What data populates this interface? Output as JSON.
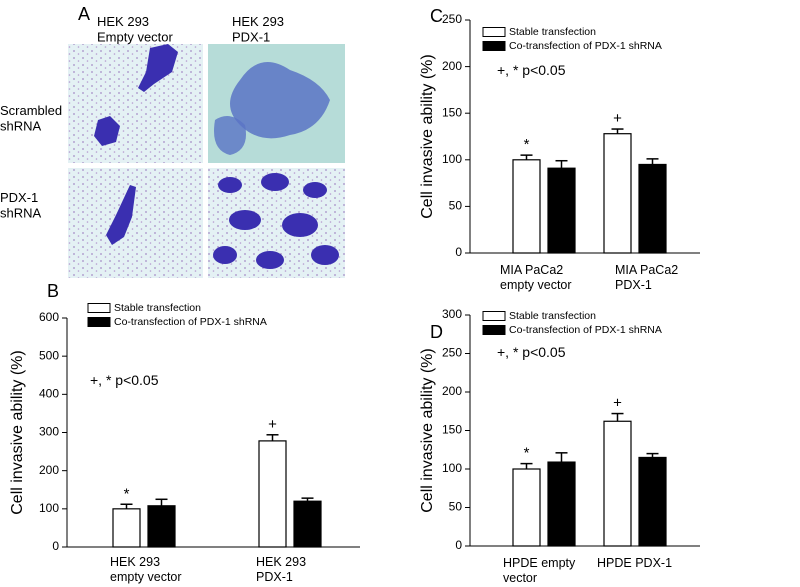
{
  "panel_a": {
    "label": "A",
    "columns": [
      "HEK 293\nEmpty vector",
      "HEK 293\nPDX-1"
    ],
    "rows": [
      "Scrambled\nshRNA",
      "PDX-1\nshRNA"
    ]
  },
  "chart_data": [
    {
      "type": "bar",
      "label": "B",
      "ylabel": "Cell invasive ability (%)",
      "note": "+, * p<0.05",
      "categories": [
        "HEK 293\nempty vector",
        "HEK 293\nPDX-1"
      ],
      "series": [
        {
          "name": "Stable transfection",
          "color": "#ffffff",
          "values": [
            100,
            278
          ],
          "errors": [
            12,
            16
          ],
          "markers": [
            "*",
            "+"
          ]
        },
        {
          "name": "Co-transfection of PDX-1 shRNA",
          "color": "#000000",
          "values": [
            108,
            120
          ],
          "errors": [
            17,
            8
          ]
        }
      ],
      "ylim": [
        0,
        600
      ],
      "yticks": [
        0,
        100,
        200,
        300,
        400,
        500,
        600
      ]
    },
    {
      "type": "bar",
      "label": "C",
      "ylabel": "Cell invasive ability (%)",
      "note": "+, * p<0.05",
      "categories": [
        "MIA PaCa2\nempty vector",
        "MIA PaCa2\nPDX-1"
      ],
      "series": [
        {
          "name": "Stable transfection",
          "color": "#ffffff",
          "values": [
            100,
            128
          ],
          "errors": [
            5,
            5
          ],
          "markers": [
            "*",
            "+"
          ]
        },
        {
          "name": "Co-transfection of PDX-1 shRNA",
          "color": "#000000",
          "values": [
            91,
            95
          ],
          "errors": [
            8,
            6
          ]
        }
      ],
      "ylim": [
        0,
        250
      ],
      "yticks": [
        0,
        50,
        100,
        150,
        200,
        250
      ]
    },
    {
      "type": "bar",
      "label": "D",
      "ylabel": "Cell invasive ability (%)",
      "note": "+, * p<0.05",
      "categories": [
        "HPDE empty\nvector",
        "HPDE PDX-1"
      ],
      "series": [
        {
          "name": "Stable transfection",
          "color": "#ffffff",
          "values": [
            100,
            162
          ],
          "errors": [
            7,
            10
          ],
          "markers": [
            "*",
            "+"
          ]
        },
        {
          "name": "Co-transfection of PDX-1 shRNA",
          "color": "#000000",
          "values": [
            109,
            115
          ],
          "errors": [
            12,
            5
          ]
        }
      ],
      "ylim": [
        0,
        300
      ],
      "yticks": [
        0,
        50,
        100,
        150,
        200,
        250,
        300
      ]
    }
  ]
}
